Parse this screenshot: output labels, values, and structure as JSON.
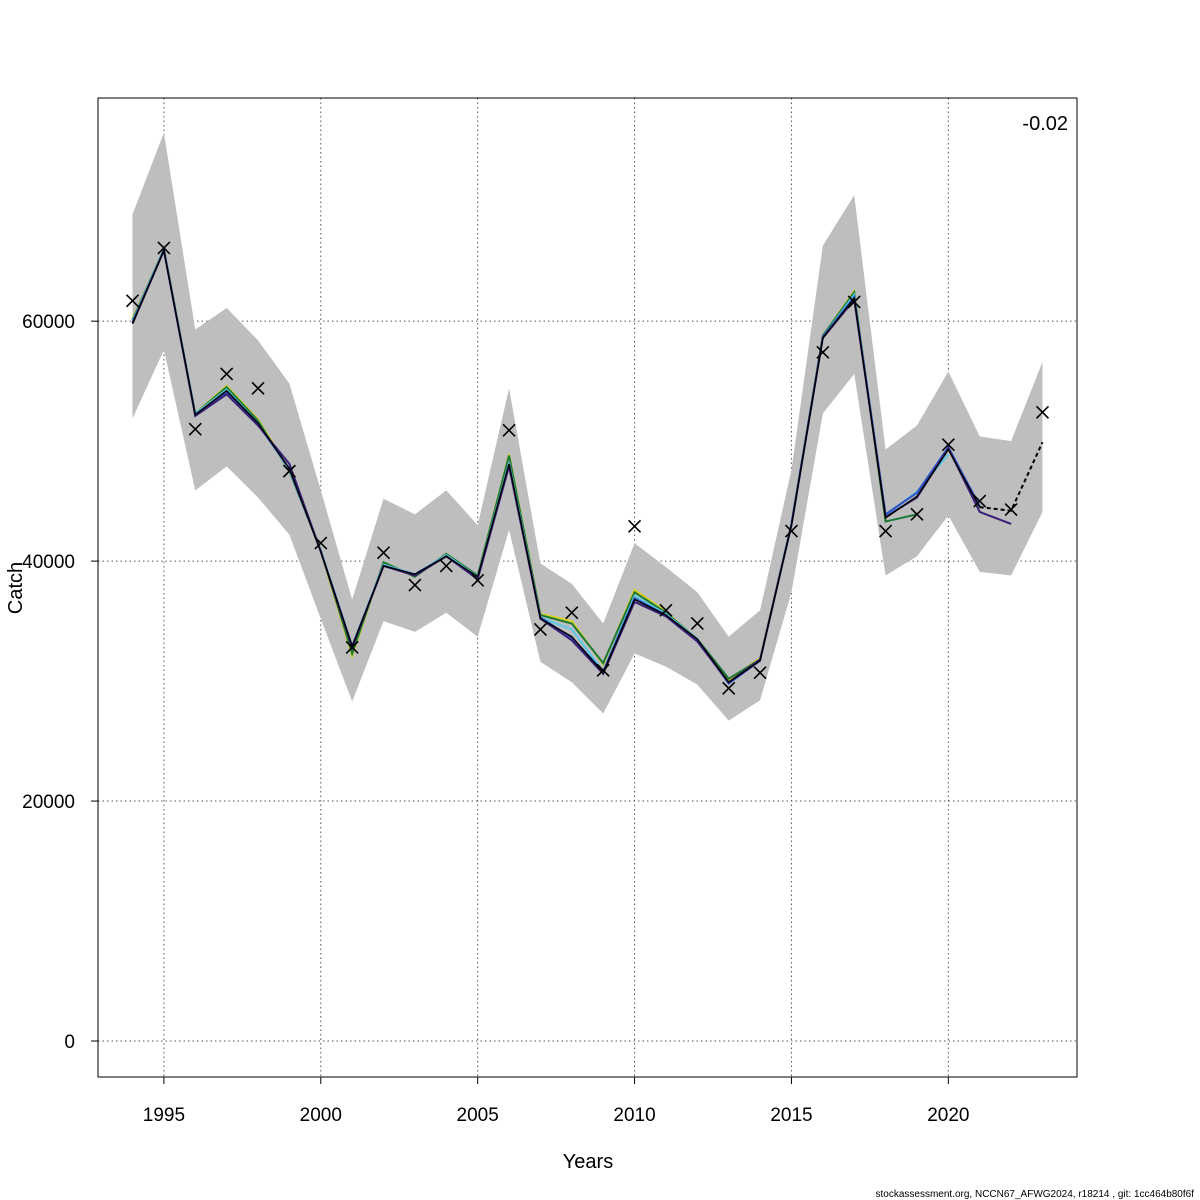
{
  "chart_data": {
    "type": "line",
    "xlabel": "Years",
    "ylabel": "Catch",
    "annotation": "-0.02",
    "footer": "stockassessment.org, NCCN67_AFWG2024, r18214 , git: 1cc464b80f6f",
    "xlim": [
      1992.9,
      2024.1
    ],
    "ylim": [
      -3000,
      78600
    ],
    "x_ticks": [
      1995,
      2000,
      2005,
      2010,
      2015,
      2020
    ],
    "y_ticks": [
      0,
      20000,
      40000,
      60000
    ],
    "grid": true,
    "colors": {
      "band": "#bebebe",
      "series": [
        "#3a1f7a",
        "#2a52c7",
        "#5bc8e6",
        "#1b7837",
        "#d9d11a"
      ],
      "base": "#000000"
    },
    "ci_band": {
      "years": [
        1994,
        1995,
        1996,
        1997,
        1998,
        1999,
        2000,
        2001,
        2002,
        2003,
        2004,
        2005,
        2006,
        2007,
        2008,
        2009,
        2010,
        2011,
        2012,
        2013,
        2014,
        2015,
        2016,
        2017,
        2018,
        2019,
        2020,
        2021,
        2022,
        2023
      ],
      "lower": [
        51900,
        57600,
        45900,
        47900,
        45300,
        42200,
        35200,
        28300,
        35000,
        34100,
        35700,
        33700,
        42600,
        31600,
        29900,
        27300,
        32300,
        31200,
        29700,
        26700,
        28400,
        37400,
        52300,
        55600,
        38800,
        40400,
        43800,
        39100,
        38800,
        44100
      ],
      "upper": [
        68900,
        75700,
        59300,
        61100,
        58400,
        54800,
        45900,
        36800,
        45200,
        43900,
        45900,
        43000,
        54400,
        39800,
        38100,
        34800,
        41500,
        39500,
        37400,
        33700,
        35900,
        47600,
        66300,
        70500,
        49300,
        51300,
        55800,
        50400,
        50000,
        56600
      ]
    },
    "observed": {
      "years": [
        1994,
        1995,
        1996,
        1997,
        1998,
        1999,
        2000,
        2001,
        2002,
        2003,
        2004,
        2005,
        2006,
        2007,
        2008,
        2009,
        2010,
        2011,
        2012,
        2013,
        2014,
        2015,
        2016,
        2017,
        2018,
        2019,
        2020,
        2021,
        2022,
        2023
      ],
      "values": [
        61700,
        66100,
        51000,
        55600,
        54400,
        47500,
        41500,
        32800,
        40700,
        38000,
        39600,
        38400,
        50900,
        34300,
        35700,
        30900,
        42900,
        35900,
        34800,
        29400,
        30700,
        42500,
        57400,
        61600,
        42500,
        43900,
        49700,
        45000,
        44300,
        52400
      ]
    },
    "series": [
      {
        "years": [
          1994,
          1995,
          1996,
          1997,
          1998,
          1999,
          2000,
          2001,
          2002,
          2003,
          2004,
          2005,
          2006,
          2007,
          2008,
          2009,
          2010,
          2011,
          2012,
          2013,
          2014,
          2015,
          2016,
          2017,
          2018,
          2019,
          2020,
          2021,
          2022,
          2023
        ],
        "values": [
          59800,
          65900,
          52200,
          54200,
          51500,
          47700,
          40800,
          32900,
          39600,
          38900,
          40400,
          38700,
          48100,
          35200,
          33700,
          30700,
          36800,
          35500,
          33500,
          29900,
          31700,
          43000,
          58600,
          61900,
          43600,
          45400,
          49300,
          44500,
          44200,
          49900
        ]
      },
      {
        "years": [
          1994,
          1995,
          1996,
          1997,
          1998,
          1999,
          2000,
          2001,
          2002,
          2003,
          2004,
          2005,
          2006,
          2007,
          2008,
          2009,
          2010,
          2011,
          2012,
          2013,
          2014,
          2015,
          2016,
          2017,
          2018,
          2019,
          2020,
          2021,
          2022
        ],
        "values": [
          59800,
          65900,
          52100,
          53900,
          51300,
          48100,
          40800,
          32800,
          39600,
          38800,
          40400,
          38500,
          47900,
          35200,
          33400,
          30600,
          36600,
          35400,
          33300,
          29900,
          31800,
          43000,
          58600,
          61800,
          43700,
          45300,
          49400,
          44100,
          43100
        ]
      },
      {
        "years": [
          1994,
          1995,
          1996,
          1997,
          1998,
          1999,
          2000,
          2001,
          2002,
          2003,
          2004,
          2005,
          2006,
          2007,
          2008,
          2009,
          2010,
          2011,
          2012,
          2013,
          2014,
          2015,
          2016,
          2017,
          2018,
          2019,
          2020,
          2021
        ],
        "values": [
          59900,
          65900,
          52200,
          54100,
          51400,
          47700,
          40800,
          32900,
          39600,
          38900,
          40400,
          38600,
          48000,
          35300,
          33600,
          30800,
          36900,
          35500,
          33400,
          29800,
          31700,
          43100,
          58700,
          62000,
          43900,
          45700,
          49500,
          44600
        ]
      },
      {
        "years": [
          1994,
          1995,
          1996,
          1997,
          1998,
          1999,
          2000,
          2001,
          2002,
          2003,
          2004,
          2005,
          2006,
          2007,
          2008,
          2009,
          2010,
          2011,
          2012,
          2013,
          2014,
          2015,
          2016,
          2017,
          2018,
          2019,
          2020
        ],
        "values": [
          60000,
          66000,
          52300,
          54300,
          51500,
          47600,
          40900,
          32900,
          39700,
          38900,
          40500,
          38700,
          48200,
          35300,
          34300,
          30800,
          37100,
          35600,
          33500,
          29800,
          31800,
          43100,
          58700,
          62200,
          43800,
          45800,
          48900
        ]
      },
      {
        "years": [
          1994,
          1995,
          1996,
          1997,
          1998,
          1999,
          2000,
          2001,
          2002,
          2003,
          2004,
          2005,
          2006,
          2007,
          2008,
          2009,
          2010,
          2011,
          2012,
          2013,
          2014,
          2015,
          2016,
          2017,
          2018,
          2019
        ],
        "values": [
          60100,
          66000,
          52300,
          54500,
          51700,
          47500,
          40900,
          32300,
          39900,
          38700,
          40600,
          38800,
          48800,
          35500,
          34800,
          31500,
          37400,
          35700,
          33500,
          30200,
          31800,
          43100,
          58800,
          62400,
          43300,
          43900
        ]
      },
      {
        "years": [
          1994,
          1995,
          1996,
          1997,
          1998,
          1999,
          2000,
          2001,
          2002,
          2003,
          2004,
          2005,
          2006,
          2007,
          2008,
          2009,
          2010,
          2011,
          2012,
          2013,
          2014,
          2015,
          2016,
          2017,
          2018
        ],
        "values": [
          60200,
          66000,
          52300,
          54600,
          51800,
          47600,
          40800,
          32100,
          39900,
          38700,
          40600,
          38800,
          48900,
          35600,
          35000,
          31400,
          37600,
          35800,
          33400,
          30100,
          31900,
          43100,
          58800,
          62500,
          43300
        ]
      }
    ]
  }
}
